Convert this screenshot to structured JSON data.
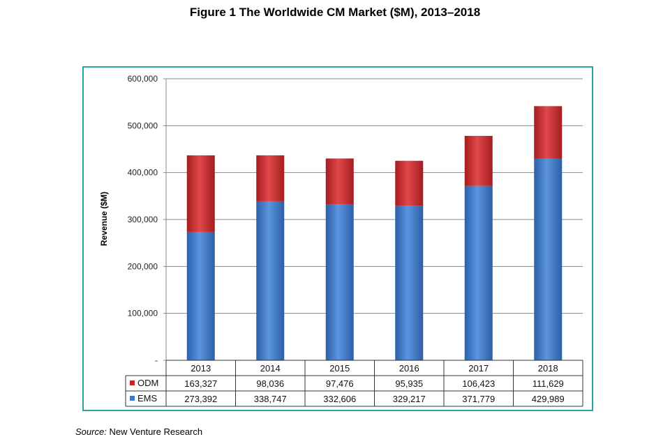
{
  "figure": {
    "title": "Figure 1   The Worldwide CM Market ($M), 2013–2018",
    "source_label": "Source:",
    "source_text": "New Venture Research"
  },
  "chart_data": {
    "type": "bar",
    "stacked": true,
    "categories": [
      "2013",
      "2014",
      "2015",
      "2016",
      "2017",
      "2018"
    ],
    "series": [
      {
        "name": "EMS",
        "values": [
          273392,
          338747,
          332606,
          329217,
          371779,
          429989
        ],
        "value_labels": [
          "273,392",
          "338,747",
          "332,606",
          "329,217",
          "371,779",
          "429,989"
        ],
        "color": "#3a78c9"
      },
      {
        "name": "ODM",
        "values": [
          163327,
          98036,
          97476,
          95935,
          106423,
          111629
        ],
        "value_labels": [
          "163,327",
          "98,036",
          "97,476",
          "95,935",
          "106,423",
          "111,629"
        ],
        "color": "#c0282a"
      }
    ],
    "ylabel": "Revenue ($M)",
    "xlabel": "",
    "ylim": [
      0,
      600000
    ],
    "yticks": [
      0,
      100000,
      200000,
      300000,
      400000,
      500000,
      600000
    ],
    "ytick_labels": [
      "-",
      "100,000",
      "200,000",
      "300,000",
      "400,000",
      "500,000",
      "600,000"
    ],
    "grid": true,
    "legend": "data-table",
    "data_table_rows": [
      "ODM",
      "EMS"
    ]
  }
}
